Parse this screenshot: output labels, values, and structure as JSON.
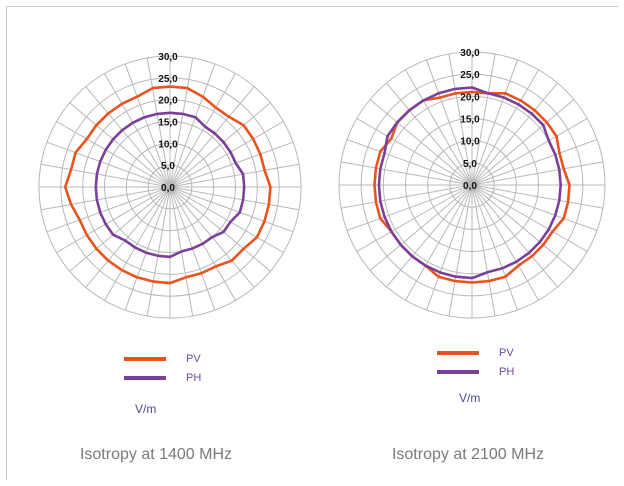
{
  "chart_data": [
    {
      "type": "polar-line",
      "title": "Isotropy at 1400 MHz",
      "unit": "V/m",
      "rlim": [
        0,
        30
      ],
      "r_ticks": [
        "0,0",
        "5,0",
        "10,0",
        "15,0",
        "20,0",
        "25,0",
        "30,0"
      ],
      "angles_deg": [
        0,
        10,
        20,
        30,
        40,
        50,
        60,
        70,
        80,
        90,
        100,
        110,
        120,
        130,
        140,
        150,
        160,
        170,
        180,
        190,
        200,
        210,
        220,
        230,
        240,
        250,
        260,
        270,
        280,
        290,
        300,
        310,
        320,
        330,
        340,
        350
      ],
      "series": [
        {
          "name": "PV",
          "color": "#e8541e",
          "values": [
            23,
            23,
            22,
            21,
            21,
            22,
            22,
            22,
            22,
            23,
            23,
            23,
            23,
            22,
            22,
            21,
            21,
            21,
            22,
            22,
            22,
            22,
            22,
            22,
            22,
            22,
            23,
            24,
            23,
            23,
            22,
            22,
            22,
            22,
            22,
            23
          ]
        },
        {
          "name": "PH",
          "color": "#7b3f98",
          "values": [
            17,
            17,
            17,
            16,
            16,
            16,
            16,
            16,
            17,
            17,
            17,
            17,
            16,
            16,
            15,
            15,
            15,
            15,
            16,
            16,
            16,
            16,
            16,
            17,
            17,
            17,
            17,
            17,
            17,
            17,
            17,
            17,
            17,
            17,
            17,
            17
          ]
        }
      ],
      "grid": true,
      "legend": "bottom-left"
    },
    {
      "type": "polar-line",
      "title": "Isotropy at 2100 MHz",
      "unit": "V/m",
      "rlim": [
        0,
        30
      ],
      "r_ticks": [
        "0,0",
        "5,0",
        "10,0",
        "15,0",
        "20,0",
        "25,0",
        "30,0"
      ],
      "angles_deg": [
        0,
        10,
        20,
        30,
        40,
        50,
        60,
        70,
        80,
        90,
        100,
        110,
        120,
        130,
        140,
        150,
        160,
        170,
        180,
        190,
        200,
        210,
        220,
        230,
        240,
        250,
        260,
        270,
        280,
        290,
        300,
        310,
        320,
        330,
        340,
        350
      ],
      "series": [
        {
          "name": "PV",
          "color": "#e8541e",
          "values": [
            21,
            21,
            22,
            22,
            22,
            22,
            22,
            21,
            21,
            22,
            22,
            22,
            21,
            21,
            21,
            21,
            22,
            22,
            22,
            22,
            22,
            21,
            21,
            21,
            21,
            22,
            22,
            22,
            22,
            22,
            21,
            22,
            22,
            22,
            21,
            21
          ]
        },
        {
          "name": "PH",
          "color": "#7b3f98",
          "values": [
            22,
            21,
            21,
            21,
            21,
            21,
            20,
            20,
            20,
            20,
            20,
            20,
            20,
            20,
            20,
            20,
            20,
            20,
            21,
            21,
            21,
            21,
            21,
            21,
            21,
            21,
            21,
            21,
            21,
            21,
            22,
            22,
            22,
            22,
            22,
            22
          ]
        }
      ],
      "grid": true,
      "legend": "bottom-left"
    }
  ]
}
